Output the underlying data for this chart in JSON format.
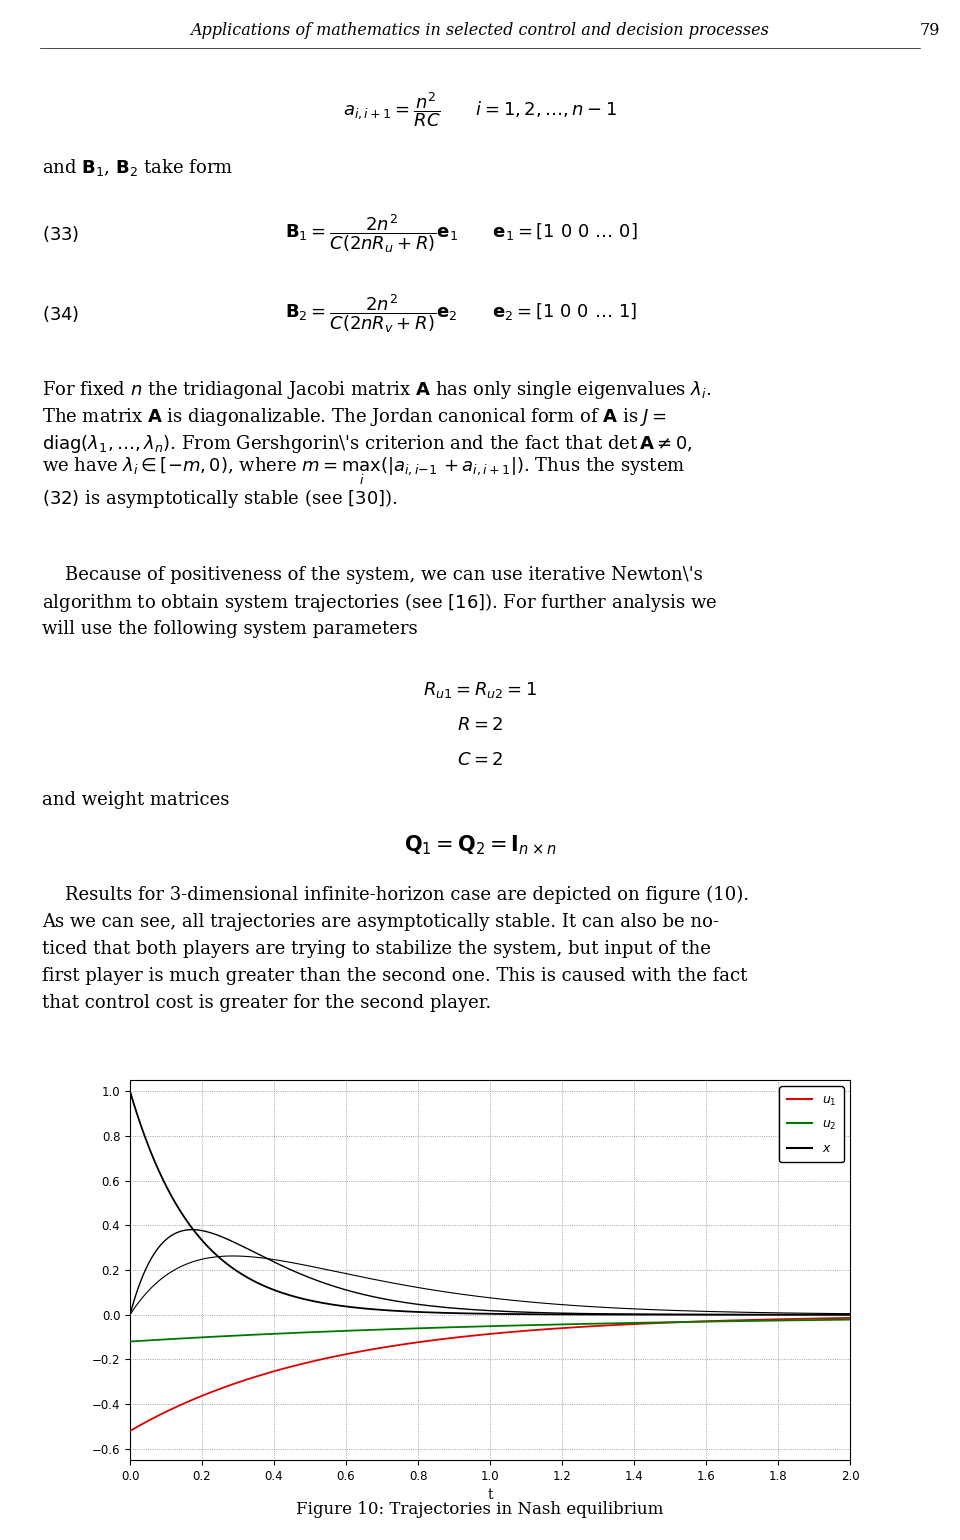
{
  "page_title": "Applications of mathematics in selected control and decision processes",
  "page_number": "79",
  "fig_caption": "Figure 10: Trajectories in Nash equilibrium",
  "background_color": "#ffffff",
  "plot": {
    "xlim": [
      0,
      2
    ],
    "ylim": [
      -0.65,
      1.05
    ],
    "xticks": [
      0,
      0.2,
      0.4,
      0.6,
      0.8,
      1.0,
      1.2,
      1.4,
      1.6,
      1.8,
      2.0
    ],
    "yticks": [
      -0.6,
      -0.4,
      -0.2,
      0.0,
      0.2,
      0.4,
      0.6,
      0.8,
      1.0
    ],
    "legend_colors": [
      "#dd0000",
      "#007700",
      "#000000"
    ],
    "legend_labels": [
      "u_1",
      "u_2",
      "x"
    ]
  }
}
